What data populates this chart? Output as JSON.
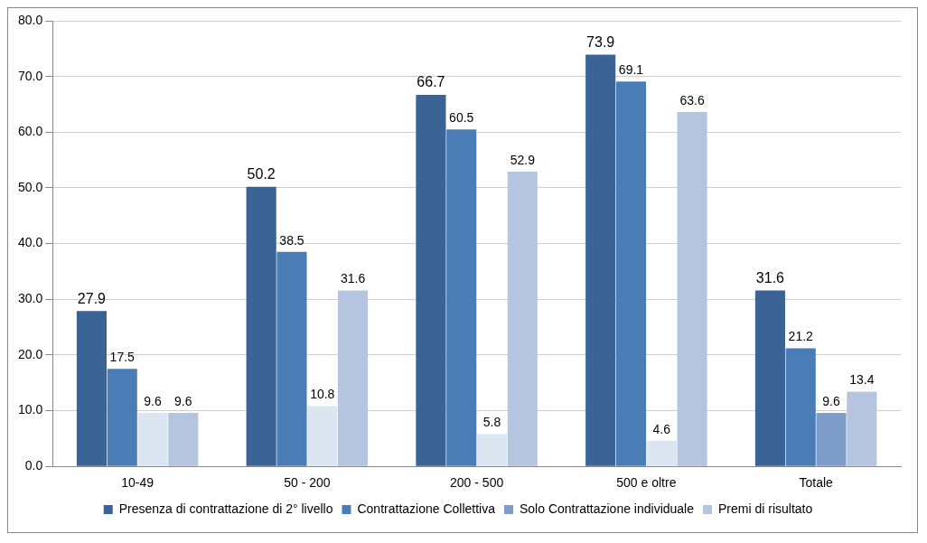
{
  "chart_data": {
    "type": "bar",
    "categories": [
      "10-49",
      "50 - 200",
      "200 - 500",
      "500 e oltre",
      "Totale"
    ],
    "series": [
      {
        "name": "Presenza di contrattazione di 2° livello",
        "color": "#3b6396",
        "values": [
          27.9,
          50.2,
          66.7,
          73.9,
          31.6
        ]
      },
      {
        "name": "Contrattazione Collettiva",
        "color": "#4a7cb5",
        "values": [
          17.5,
          38.5,
          60.5,
          69.1,
          21.2
        ]
      },
      {
        "name": "Solo Contrattazione individuale",
        "color": "#7f9dca",
        "colors": [
          "#dce6f2",
          "#dce6f2",
          "#dce6f2",
          "#dce6f2",
          "#7f9dca"
        ],
        "values": [
          9.6,
          10.8,
          5.8,
          4.6,
          9.6
        ]
      },
      {
        "name": "Premi di risultato",
        "color": "#b5c5e0",
        "values": [
          9.6,
          31.6,
          52.9,
          63.6,
          13.4
        ]
      }
    ],
    "ylim": [
      0,
      80
    ],
    "yticks": [
      {
        "value": 0,
        "label": "0.0"
      },
      {
        "value": 10,
        "label": "10.0"
      },
      {
        "value": 20,
        "label": "20.0"
      },
      {
        "value": 30,
        "label": "30.0"
      },
      {
        "value": 40,
        "label": "40.0"
      },
      {
        "value": 50,
        "label": "50.0"
      },
      {
        "value": 60,
        "label": "60.0"
      },
      {
        "value": 70,
        "label": "70.0"
      },
      {
        "value": 80,
        "label": "80.0"
      }
    ],
    "grid": "y",
    "legend": "bottom",
    "data_labels": true
  }
}
